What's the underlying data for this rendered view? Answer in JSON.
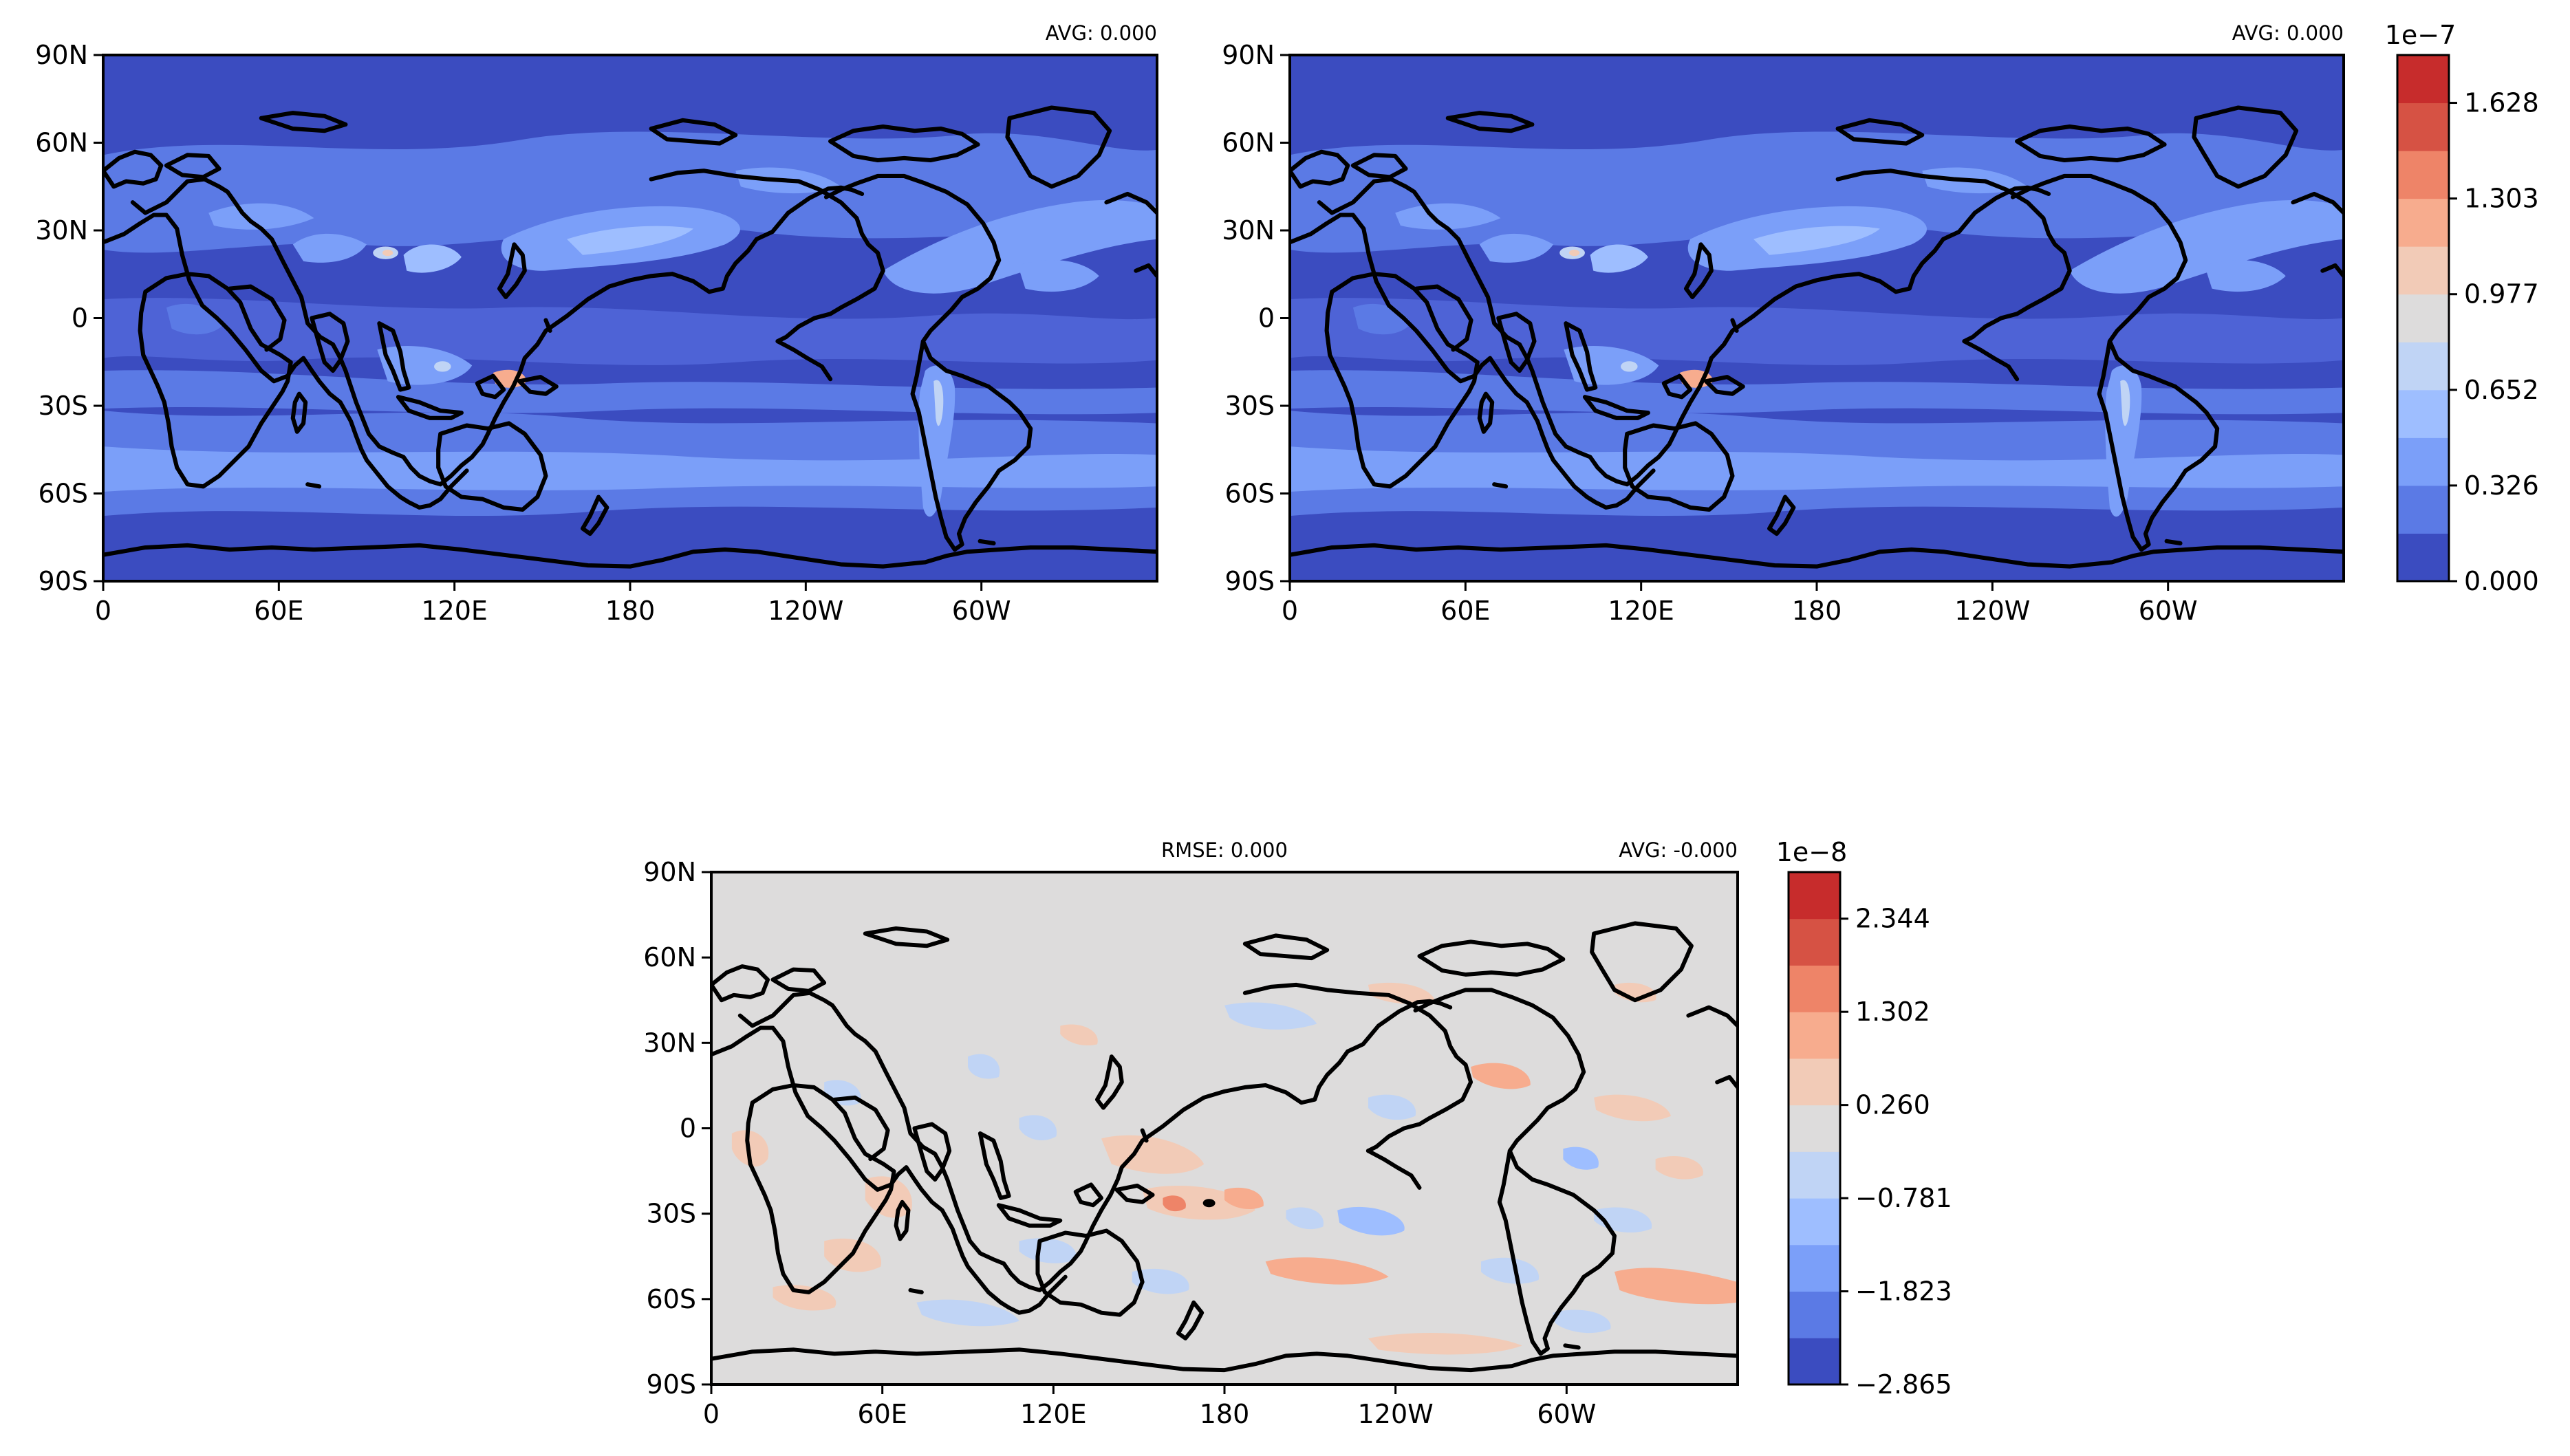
{
  "chart_data": [
    {
      "type": "heatmap",
      "panel": "top-left",
      "annotation_right": "AVG: 0.000",
      "yticks": [
        "90N",
        "60N",
        "30N",
        "0",
        "30S",
        "60S",
        "90S"
      ],
      "xticks": [
        "0",
        "60E",
        "120E",
        "180",
        "120W",
        "60W"
      ],
      "lat_range": [
        -90,
        90
      ],
      "lon_range": [
        0,
        360
      ],
      "colorbar": "shared-top"
    },
    {
      "type": "heatmap",
      "panel": "top-right",
      "annotation_right": "AVG: 0.000",
      "yticks": [
        "90N",
        "60N",
        "30N",
        "0",
        "30S",
        "60S",
        "90S"
      ],
      "xticks": [
        "0",
        "60E",
        "120E",
        "180",
        "120W",
        "60W"
      ],
      "lat_range": [
        -90,
        90
      ],
      "lon_range": [
        0,
        360
      ],
      "colorbar": "shared-top"
    },
    {
      "type": "heatmap",
      "panel": "bottom-difference",
      "annotation_center": "RMSE: 0.000",
      "annotation_right": "AVG: -0.000",
      "yticks": [
        "90N",
        "60N",
        "30N",
        "0",
        "30S",
        "60S",
        "90S"
      ],
      "xticks": [
        "0",
        "60E",
        "120E",
        "180",
        "120W",
        "60W"
      ],
      "lat_range": [
        -90,
        90
      ],
      "lon_range": [
        0,
        360
      ],
      "colorbar": "bottom"
    }
  ],
  "colorbars": {
    "top": {
      "exponent": "1e−7",
      "tick_labels": [
        "1.628",
        "1.303",
        "0.977",
        "0.652",
        "0.326",
        "0.000"
      ],
      "levels": 10,
      "range": [
        0.0,
        1.954
      ],
      "colors": [
        "#3b4cc0",
        "#5b7ae5",
        "#7b9ff9",
        "#9ebeff",
        "#c0d4f5",
        "#dddcdc",
        "#f2cbb7",
        "#f7ac8e",
        "#ee8468",
        "#d65244",
        "#c72c2c"
      ]
    },
    "bottom": {
      "exponent": "1e−8",
      "tick_labels": [
        "2.344",
        "1.302",
        "0.260",
        "−0.781",
        "−1.823",
        "−2.865"
      ],
      "levels": 11,
      "range": [
        -2.865,
        2.865
      ],
      "colors": [
        "#3b4cc0",
        "#5b7ae5",
        "#7b9ff9",
        "#9ebeff",
        "#c0d4f5",
        "#dddcdc",
        "#f2cbb7",
        "#f7ac8e",
        "#ee8468",
        "#d65244",
        "#c72c2c"
      ]
    }
  }
}
